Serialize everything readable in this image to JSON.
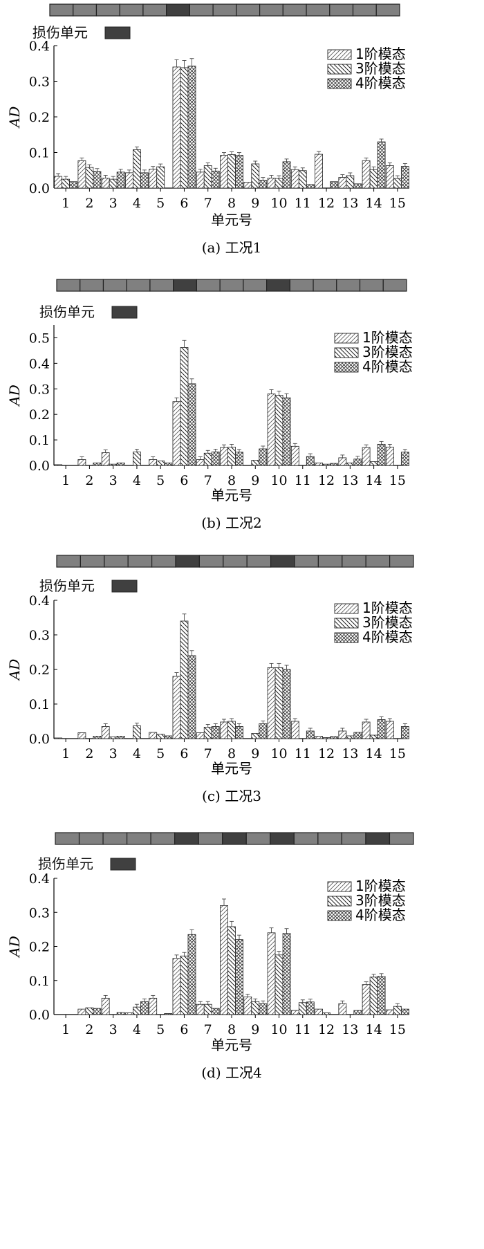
{
  "damage_label": "损伤单元",
  "legend": [
    "1阶模态",
    "3阶模态",
    "4阶模态"
  ],
  "colors": {
    "element_normal": "#808080",
    "element_damaged": "#404040",
    "bar_border": "#222222"
  },
  "chart_data": [
    {
      "type": "bar",
      "caption": "(a) 工况1",
      "xlabel": "单元号",
      "ylabel": "AD",
      "ylim": [
        0,
        0.4
      ],
      "yticks": [
        "0.0",
        "0.1",
        "0.2",
        "0.3",
        "0.4"
      ],
      "categories": [
        "1",
        "2",
        "3",
        "4",
        "5",
        "6",
        "7",
        "8",
        "9",
        "10",
        "11",
        "12",
        "13",
        "14",
        "15"
      ],
      "damaged_elements": [
        6
      ],
      "series": [
        {
          "name": "1阶模态",
          "values": [
            0.033,
            0.077,
            0.028,
            0.043,
            0.053,
            0.34,
            0.045,
            0.092,
            0.016,
            0.028,
            0.052,
            0.095,
            0.03,
            0.077,
            0.063
          ]
        },
        {
          "name": "3阶模态",
          "values": [
            0.025,
            0.058,
            0.025,
            0.108,
            0.06,
            0.338,
            0.063,
            0.094,
            0.068,
            0.027,
            0.049,
            0.0,
            0.035,
            0.052,
            0.027
          ]
        },
        {
          "name": "4阶模态",
          "values": [
            0.018,
            0.047,
            0.045,
            0.043,
            0.0,
            0.343,
            0.048,
            0.092,
            0.022,
            0.074,
            0.01,
            0.018,
            0.012,
            0.13,
            0.061
          ]
        }
      ]
    },
    {
      "type": "bar",
      "caption": "(b) 工况2",
      "xlabel": "单元号",
      "ylabel": "AD",
      "ylim": [
        0,
        0.55
      ],
      "yticks": [
        "0.0",
        "0.1",
        "0.2",
        "0.3",
        "0.4",
        "0.5"
      ],
      "categories": [
        "1",
        "2",
        "3",
        "4",
        "5",
        "6",
        "7",
        "8",
        "9",
        "10",
        "11",
        "12",
        "13",
        "14",
        "15"
      ],
      "damaged_elements": [
        6,
        10
      ],
      "series": [
        {
          "name": "1阶模态",
          "values": [
            0.003,
            0.023,
            0.05,
            0.0,
            0.023,
            0.25,
            0.023,
            0.07,
            0.0,
            0.28,
            0.075,
            0.01,
            0.03,
            0.07,
            0.072
          ]
        },
        {
          "name": "3阶模态",
          "values": [
            0.0,
            0.0,
            0.005,
            0.053,
            0.018,
            0.462,
            0.048,
            0.072,
            0.02,
            0.275,
            0.0,
            0.005,
            0.01,
            0.015,
            0.0
          ]
        },
        {
          "name": "4阶模态",
          "values": [
            0.0,
            0.01,
            0.01,
            0.0,
            0.01,
            0.32,
            0.053,
            0.052,
            0.065,
            0.265,
            0.035,
            0.008,
            0.025,
            0.083,
            0.052
          ]
        }
      ]
    },
    {
      "type": "bar",
      "caption": "(c) 工况3",
      "xlabel": "单元号",
      "ylabel": "AD",
      "ylim": [
        0,
        0.4
      ],
      "yticks": [
        "0.0",
        "0.1",
        "0.2",
        "0.3",
        "0.4"
      ],
      "categories": [
        "1",
        "2",
        "3",
        "4",
        "5",
        "6",
        "7",
        "8",
        "9",
        "10",
        "11",
        "12",
        "13",
        "14",
        "15"
      ],
      "damaged_elements": [
        6,
        10
      ],
      "series": [
        {
          "name": "1阶模态",
          "values": [
            0.002,
            0.017,
            0.035,
            0.0,
            0.018,
            0.18,
            0.017,
            0.048,
            0.0,
            0.205,
            0.05,
            0.007,
            0.022,
            0.048,
            0.05
          ]
        },
        {
          "name": "3阶模态",
          "values": [
            0.0,
            0.0,
            0.005,
            0.037,
            0.013,
            0.34,
            0.033,
            0.05,
            0.015,
            0.205,
            0.0,
            0.003,
            0.008,
            0.01,
            0.0
          ]
        },
        {
          "name": "4阶模态",
          "values": [
            0.0,
            0.007,
            0.007,
            0.0,
            0.008,
            0.24,
            0.035,
            0.035,
            0.043,
            0.2,
            0.022,
            0.006,
            0.018,
            0.055,
            0.035
          ]
        }
      ]
    },
    {
      "type": "bar",
      "caption": "(d) 工况4",
      "xlabel": "单元号",
      "ylabel": "AD",
      "ylim": [
        0,
        0.4
      ],
      "yticks": [
        "0.0",
        "0.1",
        "0.2",
        "0.3",
        "0.4"
      ],
      "categories": [
        "1",
        "2",
        "3",
        "4",
        "5",
        "6",
        "7",
        "8",
        "9",
        "10",
        "11",
        "12",
        "13",
        "14",
        "15"
      ],
      "damaged_elements": [
        6,
        8,
        10,
        14
      ],
      "series": [
        {
          "name": "1阶模态",
          "values": [
            0.0,
            0.016,
            0.048,
            0.005,
            0.048,
            0.165,
            0.03,
            0.32,
            0.052,
            0.24,
            0.012,
            0.016,
            0.032,
            0.088,
            0.014
          ]
        },
        {
          "name": "3阶模态",
          "values": [
            0.0,
            0.02,
            0.0,
            0.022,
            0.0,
            0.172,
            0.03,
            0.258,
            0.038,
            0.175,
            0.035,
            0.005,
            0.0,
            0.11,
            0.024
          ]
        },
        {
          "name": "4阶模态",
          "values": [
            0.0,
            0.018,
            0.006,
            0.038,
            0.003,
            0.235,
            0.018,
            0.22,
            0.032,
            0.238,
            0.037,
            0.0,
            0.012,
            0.112,
            0.016
          ]
        }
      ]
    }
  ]
}
